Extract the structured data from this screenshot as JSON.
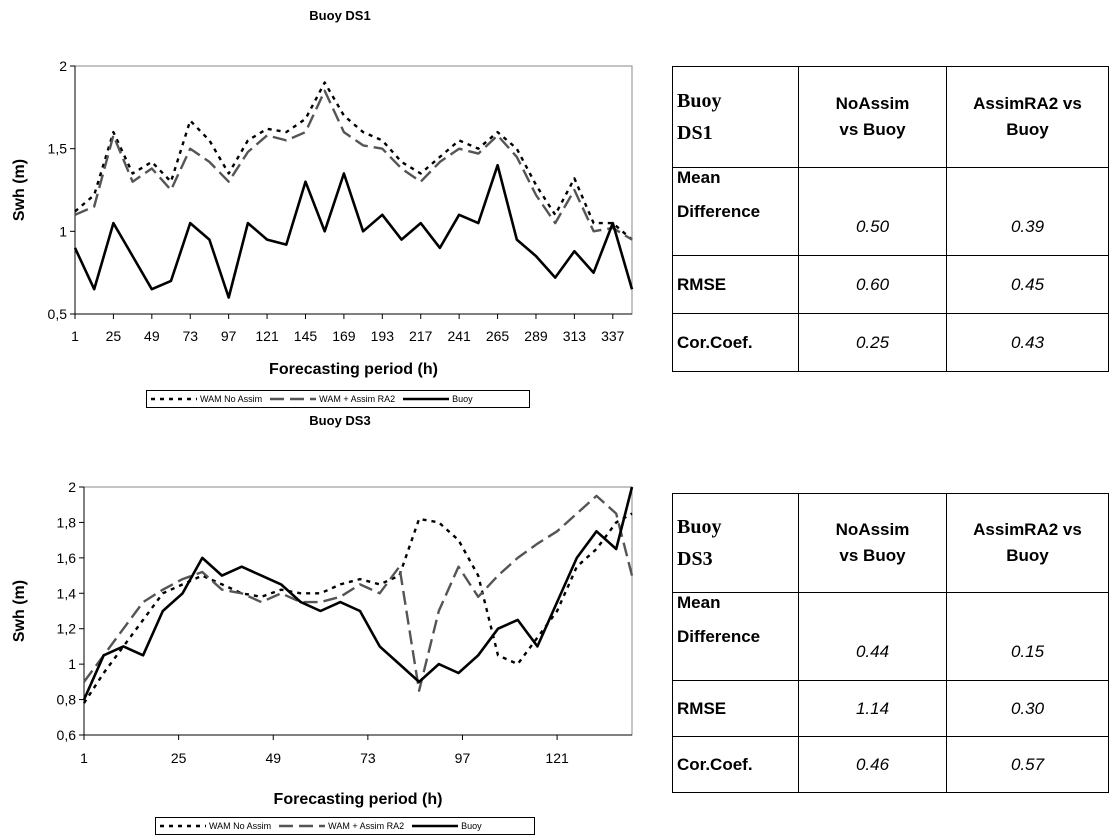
{
  "charts": [
    {
      "id": "ds1",
      "title": "Buoy DS1",
      "xlabel": "Forecasting period (h)",
      "ylabel": "Swh (m)",
      "x_ticks": [
        "1",
        "25",
        "49",
        "73",
        "97",
        "121",
        "145",
        "169",
        "193",
        "217",
        "241",
        "265",
        "289",
        "313",
        "337"
      ],
      "y_ticks": [
        "0,5",
        "1",
        "1,5",
        "2"
      ],
      "legend": [
        "WAM No Assim",
        "WAM + Assim RA2",
        "Buoy"
      ]
    },
    {
      "id": "ds3",
      "title": "Buoy DS3",
      "xlabel": "Forecasting period (h)",
      "ylabel": "Swh (m)",
      "x_ticks": [
        "1",
        "25",
        "49",
        "73",
        "97",
        "121"
      ],
      "y_ticks": [
        "0,6",
        "0,8",
        "1",
        "1,2",
        "1,4",
        "1,6",
        "1,8",
        "2"
      ],
      "legend": [
        "WAM No Assim",
        "WAM + Assim RA2",
        "Buoy"
      ]
    }
  ],
  "tables": [
    {
      "id": "ds1",
      "corner": [
        "Buoy",
        "DS1"
      ],
      "col1": [
        "NoAssim",
        "vs Buoy"
      ],
      "col2": [
        "AssimRA2 vs",
        "Buoy"
      ],
      "rows": [
        {
          "label": [
            "Mean",
            "Difference"
          ],
          "v1": "0.50",
          "v2": "0.39"
        },
        {
          "label": [
            "RMSE"
          ],
          "v1": "0.60",
          "v2": "0.45"
        },
        {
          "label": [
            "Cor.Coef."
          ],
          "v1": "0.25",
          "v2": "0.43"
        }
      ]
    },
    {
      "id": "ds3",
      "corner": [
        "Buoy",
        "DS3"
      ],
      "col1": [
        "NoAssim",
        "vs Buoy"
      ],
      "col2": [
        "AssimRA2 vs",
        "Buoy"
      ],
      "rows": [
        {
          "label": [
            "Mean",
            "Difference"
          ],
          "v1": "0.44",
          "v2": "0.15"
        },
        {
          "label": [
            "RMSE"
          ],
          "v1": "1.14",
          "v2": "0.30"
        },
        {
          "label": [
            "Cor.Coef."
          ],
          "v1": "0.46",
          "v2": "0.57"
        }
      ]
    }
  ],
  "chart_data": [
    {
      "type": "line",
      "title": "Buoy DS1",
      "xlabel": "Forecasting period (h)",
      "ylabel": "Swh (m)",
      "xlim": [
        1,
        349
      ],
      "ylim": [
        0.5,
        2
      ],
      "x": [
        1,
        13,
        25,
        37,
        49,
        61,
        73,
        85,
        97,
        109,
        121,
        133,
        145,
        157,
        169,
        181,
        193,
        205,
        217,
        229,
        241,
        253,
        265,
        277,
        289,
        301,
        313,
        325,
        337,
        349
      ],
      "series": [
        {
          "name": "WAM No Assim",
          "style": "dotted",
          "color": "#000000",
          "values": [
            1.12,
            1.22,
            1.6,
            1.35,
            1.42,
            1.3,
            1.67,
            1.55,
            1.35,
            1.55,
            1.62,
            1.6,
            1.68,
            1.9,
            1.7,
            1.6,
            1.55,
            1.42,
            1.35,
            1.45,
            1.55,
            1.5,
            1.6,
            1.5,
            1.28,
            1.1,
            1.32,
            1.05,
            1.05,
            0.95
          ]
        },
        {
          "name": "WAM + Assim RA2",
          "style": "dashed",
          "color": "#555555",
          "values": [
            1.1,
            1.15,
            1.58,
            1.3,
            1.38,
            1.25,
            1.5,
            1.42,
            1.3,
            1.48,
            1.58,
            1.55,
            1.6,
            1.85,
            1.6,
            1.52,
            1.5,
            1.38,
            1.3,
            1.42,
            1.5,
            1.47,
            1.58,
            1.45,
            1.22,
            1.05,
            1.25,
            1.0,
            1.02,
            0.95
          ]
        },
        {
          "name": "Buoy",
          "style": "solid",
          "color": "#000000",
          "values": [
            0.9,
            0.65,
            1.05,
            0.85,
            0.65,
            0.7,
            1.05,
            0.95,
            0.6,
            1.05,
            0.95,
            0.92,
            1.3,
            1.0,
            1.35,
            1.0,
            1.1,
            0.95,
            1.05,
            0.9,
            1.1,
            1.05,
            1.4,
            0.95,
            0.85,
            0.72,
            0.88,
            0.75,
            1.05,
            0.65
          ]
        }
      ]
    },
    {
      "type": "line",
      "title": "Buoy DS3",
      "xlabel": "Forecasting period (h)",
      "ylabel": "Swh (m)",
      "xlim": [
        1,
        140
      ],
      "ylim": [
        0.6,
        2
      ],
      "x": [
        1,
        6,
        11,
        16,
        21,
        26,
        31,
        36,
        41,
        46,
        51,
        56,
        61,
        66,
        71,
        76,
        81,
        86,
        91,
        96,
        101,
        106,
        111,
        116,
        121,
        126,
        131,
        136,
        140
      ],
      "series": [
        {
          "name": "WAM No Assim",
          "style": "dotted",
          "color": "#000000",
          "values": [
            0.78,
            0.95,
            1.1,
            1.25,
            1.4,
            1.45,
            1.5,
            1.45,
            1.4,
            1.38,
            1.42,
            1.4,
            1.4,
            1.45,
            1.48,
            1.45,
            1.5,
            1.82,
            1.8,
            1.7,
            1.5,
            1.05,
            1.0,
            1.15,
            1.3,
            1.55,
            1.65,
            1.8,
            1.85
          ]
        },
        {
          "name": "WAM + Assim RA2",
          "style": "dashed",
          "color": "#555555",
          "values": [
            0.9,
            1.05,
            1.2,
            1.35,
            1.42,
            1.48,
            1.52,
            1.42,
            1.4,
            1.35,
            1.4,
            1.35,
            1.35,
            1.38,
            1.45,
            1.4,
            1.55,
            0.85,
            1.3,
            1.55,
            1.38,
            1.5,
            1.6,
            1.68,
            1.75,
            1.85,
            1.95,
            1.85,
            1.5
          ]
        },
        {
          "name": "Buoy",
          "style": "solid",
          "color": "#000000",
          "values": [
            0.8,
            1.05,
            1.1,
            1.05,
            1.3,
            1.4,
            1.6,
            1.5,
            1.55,
            1.5,
            1.45,
            1.35,
            1.3,
            1.35,
            1.3,
            1.1,
            1.0,
            0.9,
            1.0,
            0.95,
            1.05,
            1.2,
            1.25,
            1.1,
            1.35,
            1.6,
            1.75,
            1.65,
            2.0
          ]
        }
      ]
    }
  ]
}
